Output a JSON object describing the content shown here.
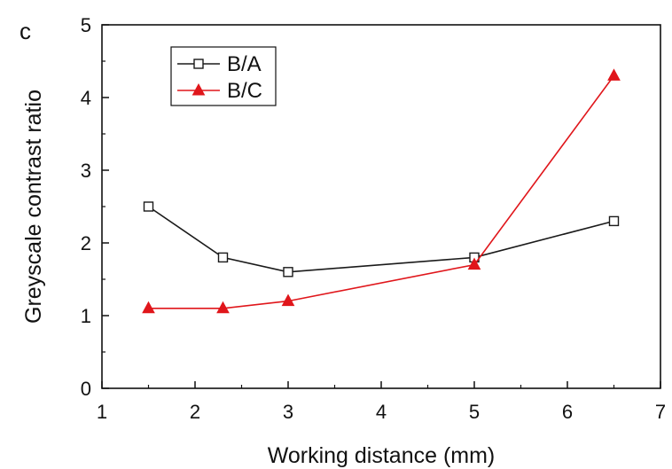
{
  "chart_data": {
    "type": "line",
    "panel_label": "c",
    "title": "",
    "xlabel": "Working distance (mm)",
    "ylabel": "Greyscale contrast ratio",
    "xlim": [
      1,
      7
    ],
    "ylim": [
      0,
      5
    ],
    "xticks": [
      1,
      2,
      3,
      4,
      5,
      6,
      7
    ],
    "yticks": [
      0,
      1,
      2,
      3,
      4,
      5
    ],
    "grid": false,
    "legend_position": "top-left",
    "series": [
      {
        "name": "B/A",
        "marker": "open-square",
        "color": "#1a1a1a",
        "x": [
          1.5,
          2.3,
          3.0,
          5.0,
          6.5
        ],
        "y": [
          2.5,
          1.8,
          1.6,
          1.8,
          2.3
        ]
      },
      {
        "name": "B/C",
        "marker": "filled-triangle",
        "color": "#e0161b",
        "x": [
          1.5,
          2.3,
          3.0,
          5.0,
          6.5
        ],
        "y": [
          1.1,
          1.1,
          1.2,
          1.7,
          4.3
        ]
      }
    ]
  }
}
